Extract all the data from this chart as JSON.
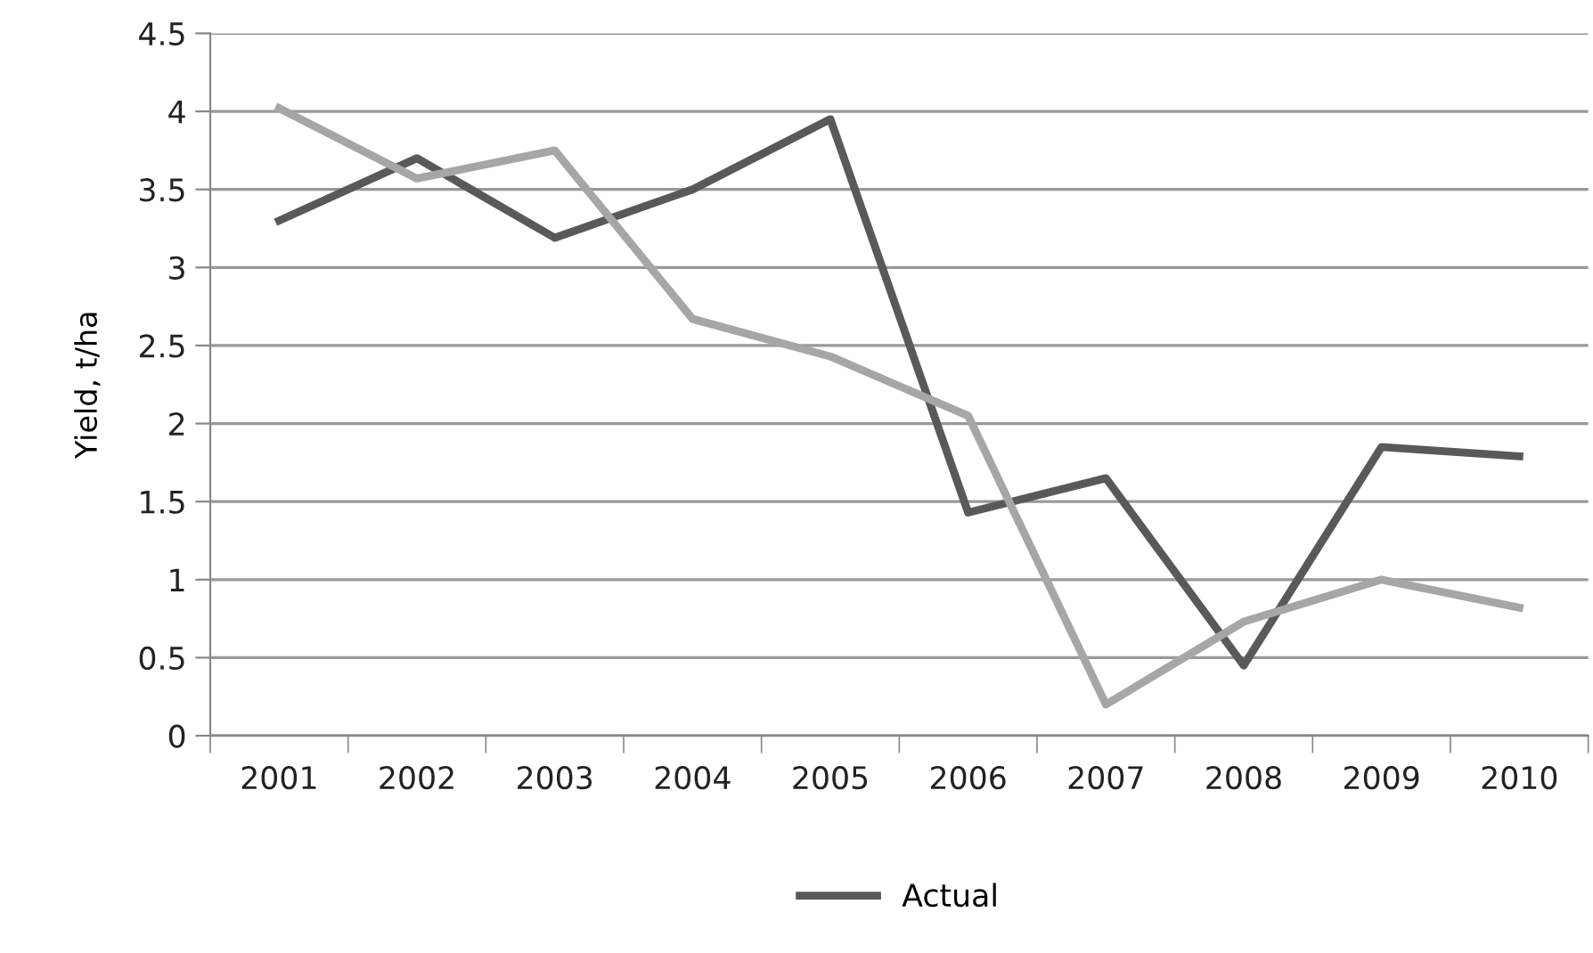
{
  "chart_data": {
    "type": "line",
    "ylabel": "Yield, t/ha",
    "categories": [
      "2001",
      "2002",
      "2003",
      "2004",
      "2005",
      "2006",
      "2007",
      "2008",
      "2009",
      "2010"
    ],
    "series": [
      {
        "name": "Actual",
        "color": "#595959",
        "values": [
          3.3,
          3.7,
          3.19,
          3.5,
          3.95,
          1.43,
          1.65,
          0.45,
          1.85,
          1.79
        ]
      },
      {
        "color": "#a6a6a6",
        "values": [
          4.02,
          3.57,
          3.75,
          2.67,
          2.43,
          2.05,
          0.2,
          0.73,
          1.0,
          0.82
        ]
      }
    ],
    "ylim": [
      0,
      4.5
    ],
    "yticks": [
      0,
      0.5,
      1,
      1.5,
      2,
      2.5,
      3,
      3.5,
      4,
      4.5
    ],
    "grid": "y",
    "legend": "bottom",
    "marker": "none",
    "line_style": "solid"
  }
}
